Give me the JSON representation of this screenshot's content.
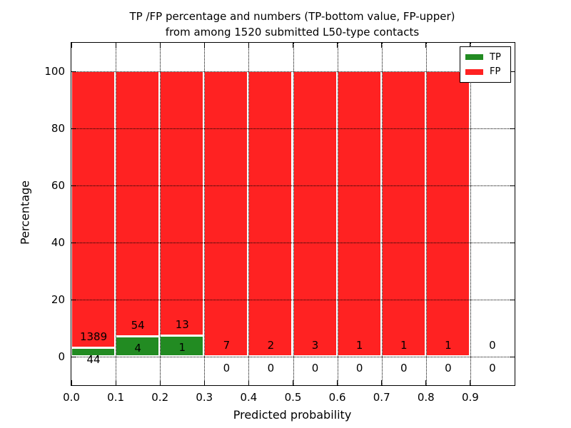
{
  "chart_data": {
    "type": "bar",
    "subtype": "stacked-percentage-histogram",
    "title_line1": "TP /FP percentage and numbers (TP-bottom value, FP-upper)",
    "title_line2": "from among 1520 submitted L50-type contacts",
    "xlabel": "Predicted probability",
    "ylabel": "Percentage",
    "xlim": [
      0.0,
      1.0
    ],
    "ylim": [
      -10,
      110
    ],
    "xtick_labels": [
      "0.0",
      "0.1",
      "0.2",
      "0.3",
      "0.4",
      "0.5",
      "0.6",
      "0.7",
      "0.8",
      "0.9"
    ],
    "ytick_values": [
      0,
      20,
      40,
      60,
      80,
      100
    ],
    "grid": "dotted, drawn above bars",
    "bin_width": 0.1,
    "total_submitted": 1520,
    "legend": {
      "position": "upper right",
      "entries": [
        {
          "label": "TP",
          "color": "#228B22"
        },
        {
          "label": "FP",
          "color": "#FF2222"
        }
      ]
    },
    "series": [
      {
        "name": "TP",
        "color": "#228B22",
        "counts": [
          44,
          4,
          1,
          0,
          0,
          0,
          0,
          0,
          0,
          0
        ]
      },
      {
        "name": "FP",
        "color": "#FF2222",
        "counts": [
          1389,
          54,
          13,
          7,
          2,
          3,
          1,
          1,
          1,
          0
        ]
      }
    ],
    "bins": [
      {
        "range": "0.0-0.1",
        "start": 0.0,
        "tp": 44,
        "fp": 1389,
        "tp_pct": 3.07,
        "fp_pct": 96.93
      },
      {
        "range": "0.1-0.2",
        "start": 0.1,
        "tp": 4,
        "fp": 54,
        "tp_pct": 6.9,
        "fp_pct": 93.1
      },
      {
        "range": "0.2-0.3",
        "start": 0.2,
        "tp": 1,
        "fp": 13,
        "tp_pct": 7.14,
        "fp_pct": 92.86
      },
      {
        "range": "0.3-0.4",
        "start": 0.3,
        "tp": 0,
        "fp": 7,
        "tp_pct": 0,
        "fp_pct": 100
      },
      {
        "range": "0.4-0.5",
        "start": 0.4,
        "tp": 0,
        "fp": 2,
        "tp_pct": 0,
        "fp_pct": 100
      },
      {
        "range": "0.5-0.6",
        "start": 0.5,
        "tp": 0,
        "fp": 3,
        "tp_pct": 0,
        "fp_pct": 100
      },
      {
        "range": "0.6-0.7",
        "start": 0.6,
        "tp": 0,
        "fp": 1,
        "tp_pct": 0,
        "fp_pct": 100
      },
      {
        "range": "0.7-0.8",
        "start": 0.7,
        "tp": 0,
        "fp": 1,
        "tp_pct": 0,
        "fp_pct": 100
      },
      {
        "range": "0.8-0.9",
        "start": 0.8,
        "tp": 0,
        "fp": 1,
        "tp_pct": 0,
        "fp_pct": 100
      },
      {
        "range": "0.9-1.0",
        "start": 0.9,
        "tp": 0,
        "fp": 0,
        "tp_pct": 0,
        "fp_pct": 0
      }
    ],
    "annotation_rule": "FP count printed above TP segment top, TP count printed below it",
    "colors": {
      "background": "#FFFFFF",
      "frame": "#000000",
      "grid": "#000000",
      "bar_edge": "#FFFFFF"
    }
  }
}
